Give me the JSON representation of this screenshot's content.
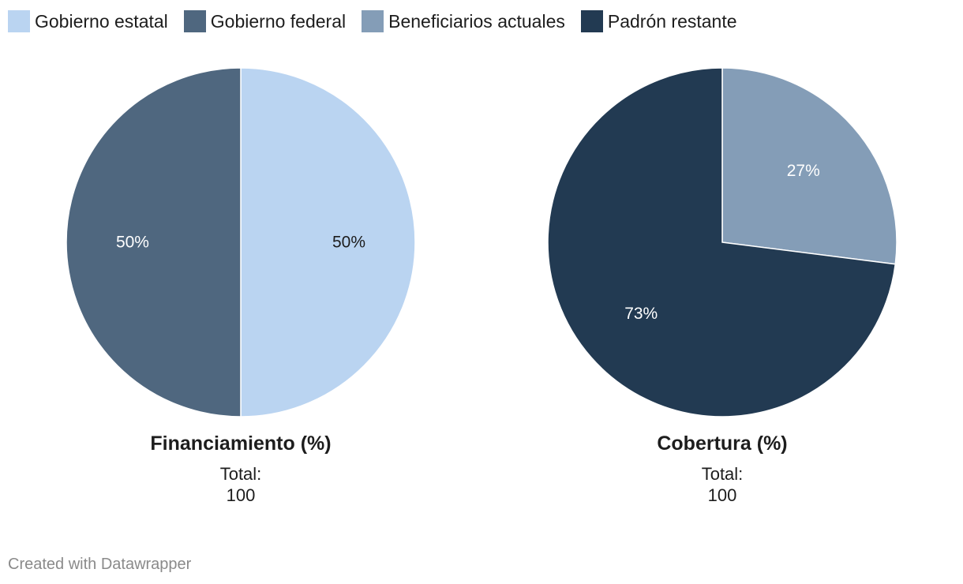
{
  "legend": [
    {
      "label": "Gobierno estatal",
      "color": "#bad4f1"
    },
    {
      "label": "Gobierno federal",
      "color": "#4f677f"
    },
    {
      "label": "Beneficiarios actuales",
      "color": "#849db7"
    },
    {
      "label": "Padrón restante",
      "color": "#223a52"
    }
  ],
  "chart_data": [
    {
      "type": "pie",
      "title": "Financiamiento (%)",
      "total_label": "Total:",
      "total_value": "100",
      "slices": [
        {
          "name": "Gobierno estatal",
          "value": 50,
          "label": "50%",
          "color": "#bad4f1",
          "label_color": "#1d1d1d"
        },
        {
          "name": "Gobierno federal",
          "value": 50,
          "label": "50%",
          "color": "#4f677f",
          "label_color": "#ffffff"
        }
      ]
    },
    {
      "type": "pie",
      "title": "Cobertura (%)",
      "total_label": "Total:",
      "total_value": "100",
      "slices": [
        {
          "name": "Beneficiarios actuales",
          "value": 27,
          "label": "27%",
          "color": "#849db7",
          "label_color": "#ffffff"
        },
        {
          "name": "Padrón restante",
          "value": 73,
          "label": "73%",
          "color": "#223a52",
          "label_color": "#ffffff"
        }
      ]
    }
  ],
  "footer": "Created with Datawrapper"
}
